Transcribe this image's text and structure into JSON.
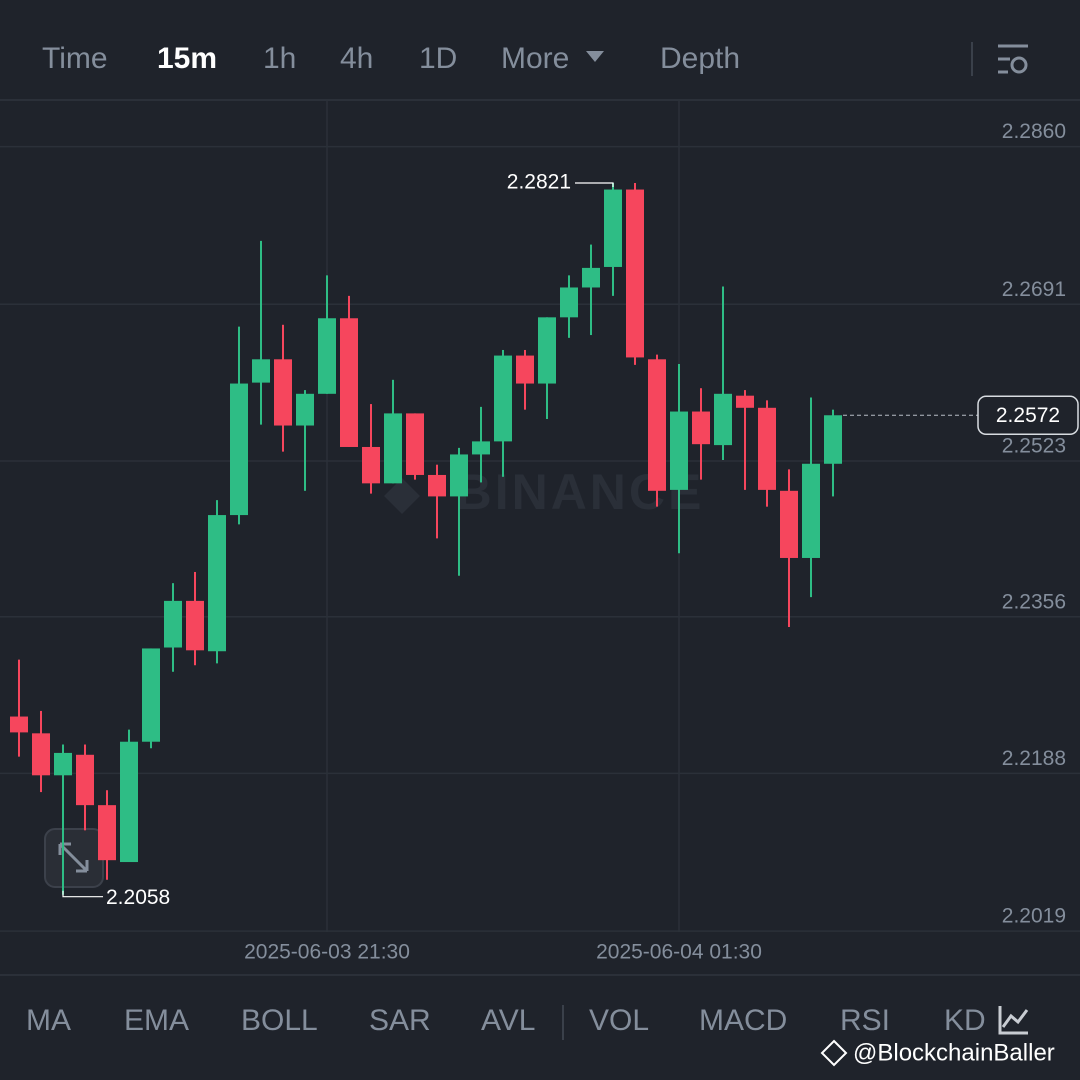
{
  "toolbar": {
    "tabs": [
      "Time",
      "15m",
      "1h",
      "4h",
      "1D",
      "More",
      "Depth"
    ]
  },
  "indicators": {
    "main": [
      "MA",
      "EMA",
      "BOLL",
      "SAR",
      "AVL"
    ],
    "sub": [
      "VOL",
      "MACD",
      "RSI",
      "KD"
    ]
  },
  "watermark": "BINANCE",
  "credit": "@BlockchainBaller",
  "chart_data": {
    "type": "candlestick",
    "categories": [
      null,
      null,
      null,
      null,
      null,
      null,
      null,
      null,
      null,
      null,
      null,
      null,
      null,
      null,
      "2025-06-03 21:30",
      null,
      null,
      null,
      null,
      null,
      null,
      null,
      null,
      null,
      null,
      null,
      null,
      null,
      null,
      null,
      "2025-06-04 01:30",
      null,
      null,
      null,
      null,
      null,
      null,
      null
    ],
    "open": [
      2.2249,
      2.2231,
      2.2186,
      2.2208,
      2.2154,
      2.2093,
      2.2222,
      2.2323,
      2.2373,
      2.2319,
      2.2465,
      2.2607,
      2.2632,
      2.2561,
      2.2595,
      2.2676,
      2.2538,
      2.2499,
      2.2574,
      2.2508,
      2.2485,
      2.253,
      2.2544,
      2.2636,
      2.2606,
      2.2677,
      2.2709,
      2.2731,
      2.2814,
      2.2632,
      2.2492,
      2.2576,
      2.254,
      2.2593,
      2.258,
      2.2491,
      2.2419,
      2.252
    ],
    "high": [
      2.231,
      2.2255,
      2.2219,
      2.2219,
      2.217,
      2.2235,
      2.2322,
      2.2392,
      2.2404,
      2.2481,
      2.2667,
      2.2759,
      2.2669,
      2.2599,
      2.2722,
      2.27,
      2.2584,
      2.261,
      2.2574,
      2.2519,
      2.2537,
      2.2581,
      2.2642,
      2.2642,
      2.2677,
      2.2722,
      2.2755,
      2.2821,
      2.2821,
      2.2637,
      2.2627,
      2.2601,
      2.271,
      2.2599,
      2.2588,
      2.2514,
      2.2591,
      2.2578
    ],
    "low": [
      2.2206,
      2.2168,
      2.2058,
      2.2127,
      2.2074,
      2.2093,
      2.2215,
      2.2297,
      2.2304,
      2.2306,
      2.2455,
      2.2562,
      2.2533,
      2.2491,
      2.2595,
      2.2538,
      2.2488,
      2.2499,
      2.2503,
      2.244,
      2.24,
      2.25,
      2.2506,
      2.2578,
      2.2568,
      2.2655,
      2.2658,
      2.27,
      2.2626,
      2.2474,
      2.2424,
      2.2503,
      2.2524,
      2.2492,
      2.2474,
      2.2345,
      2.2377,
      2.2485
    ],
    "close": [
      2.2232,
      2.2186,
      2.221,
      2.2154,
      2.2095,
      2.2222,
      2.2322,
      2.2373,
      2.232,
      2.2465,
      2.2606,
      2.2632,
      2.2561,
      2.2595,
      2.2676,
      2.2538,
      2.2499,
      2.2574,
      2.2508,
      2.2485,
      2.253,
      2.2544,
      2.2636,
      2.2606,
      2.2677,
      2.2709,
      2.273,
      2.2814,
      2.2634,
      2.2491,
      2.2576,
      2.2541,
      2.2595,
      2.258,
      2.2492,
      2.2419,
      2.252,
      2.2572
    ],
    "up_color": "#2ebd85",
    "down_color": "#f6465d",
    "ylim": [
      2.2018,
      2.291
    ],
    "yticks": [
      {
        "value": 2.286,
        "label": "2.2860"
      },
      2.2691,
      2.2523,
      2.2356,
      2.2188,
      2.2019
    ],
    "grid": true,
    "max_label": 2.2821,
    "min_label": 2.2058,
    "last_price": 2.2572
  }
}
